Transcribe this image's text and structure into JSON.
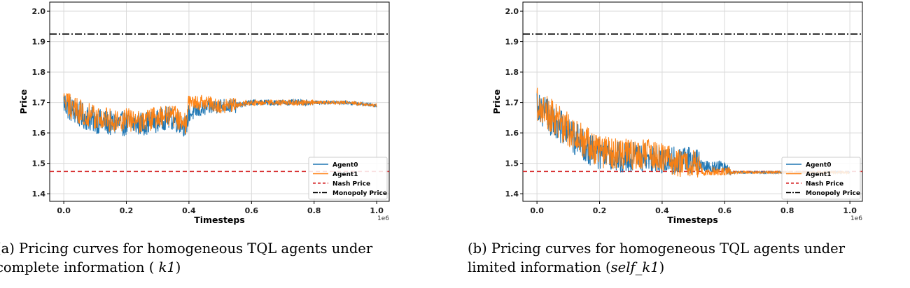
{
  "colors": {
    "agent0": "#1f77b4",
    "agent1": "#ff7f0e",
    "nash": "#d62728",
    "monopoly": "#000000",
    "grid": "#d9d9d9"
  },
  "chart_data": [
    {
      "type": "line",
      "ylabel": "Price",
      "xlabel": "Timesteps",
      "x_offset_text": "1e6",
      "xlim": [
        -0.045,
        1.04
      ],
      "ylim": [
        1.375,
        2.03
      ],
      "xticks": [
        "0.0",
        "0.2",
        "0.4",
        "0.6",
        "0.8",
        "1.0"
      ],
      "yticks": [
        "1.4",
        "1.5",
        "1.6",
        "1.7",
        "1.8",
        "1.9",
        "2.0"
      ],
      "grid": true,
      "legend_position": "lower right",
      "series": [
        {
          "name": "Agent0",
          "x": [
            0,
            0.02,
            0.05,
            0.1,
            0.15,
            0.2,
            0.25,
            0.3,
            0.33,
            0.36,
            0.38,
            0.39,
            0.4,
            0.45,
            0.5,
            0.55,
            0.6,
            0.7,
            0.8,
            0.9,
            1.0
          ],
          "y": [
            1.7,
            1.68,
            1.66,
            1.64,
            1.63,
            1.63,
            1.63,
            1.64,
            1.65,
            1.64,
            1.63,
            1.62,
            1.66,
            1.68,
            1.69,
            1.69,
            1.7,
            1.7,
            1.7,
            1.7,
            1.69
          ]
        },
        {
          "name": "Agent1",
          "x": [
            0,
            0.02,
            0.05,
            0.1,
            0.15,
            0.2,
            0.25,
            0.3,
            0.33,
            0.36,
            0.38,
            0.39,
            0.4,
            0.45,
            0.5,
            0.55,
            0.6,
            0.7,
            0.8,
            0.9,
            1.0
          ],
          "y": [
            1.7,
            1.69,
            1.67,
            1.65,
            1.64,
            1.64,
            1.64,
            1.65,
            1.66,
            1.65,
            1.64,
            1.63,
            1.7,
            1.7,
            1.69,
            1.69,
            1.7,
            1.7,
            1.7,
            1.7,
            1.69
          ]
        },
        {
          "name": "Nash Price",
          "y_constant": 1.473
        },
        {
          "name": "Monopoly Price",
          "y_constant": 1.925
        }
      ],
      "caption_line1": "(a) Pricing curves for homogeneous TQL agents under",
      "caption_line2_pre": "complete information ( ",
      "caption_math": "k1",
      "caption_line2_post": ")"
    },
    {
      "type": "line",
      "ylabel": "Price",
      "xlabel": "Timesteps",
      "x_offset_text": "1e6",
      "xlim": [
        -0.045,
        1.04
      ],
      "ylim": [
        1.375,
        2.03
      ],
      "xticks": [
        "0.0",
        "0.2",
        "0.4",
        "0.6",
        "0.8",
        "1.0"
      ],
      "yticks": [
        "1.4",
        "1.5",
        "1.6",
        "1.7",
        "1.8",
        "1.9",
        "2.0"
      ],
      "grid": true,
      "legend_position": "lower right",
      "series": [
        {
          "name": "Agent0",
          "x": [
            0,
            0.05,
            0.1,
            0.15,
            0.2,
            0.25,
            0.3,
            0.35,
            0.4,
            0.45,
            0.5,
            0.52,
            0.53,
            0.6,
            0.62,
            0.7,
            0.8,
            0.9,
            1.0
          ],
          "y": [
            1.7,
            1.64,
            1.6,
            1.56,
            1.53,
            1.52,
            1.52,
            1.52,
            1.51,
            1.51,
            1.51,
            1.5,
            1.49,
            1.49,
            1.47,
            1.47,
            1.47,
            1.47,
            1.47
          ]
        },
        {
          "name": "Agent1",
          "x": [
            0,
            0.05,
            0.1,
            0.15,
            0.2,
            0.25,
            0.3,
            0.35,
            0.4,
            0.45,
            0.5,
            0.52,
            0.53,
            0.6,
            0.62,
            0.7,
            0.8,
            0.9,
            1.0
          ],
          "y": [
            1.7,
            1.65,
            1.61,
            1.57,
            1.54,
            1.53,
            1.53,
            1.53,
            1.52,
            1.5,
            1.5,
            1.49,
            1.47,
            1.47,
            1.47,
            1.47,
            1.47,
            1.47,
            1.47
          ]
        },
        {
          "name": "Nash Price",
          "y_constant": 1.473
        },
        {
          "name": "Monopoly Price",
          "y_constant": 1.925
        }
      ],
      "caption_line1": "(b) Pricing curves for homogeneous TQL agents under",
      "caption_line2_pre": "limited information (",
      "caption_math": "self_k1",
      "caption_line2_post": ")"
    }
  ]
}
